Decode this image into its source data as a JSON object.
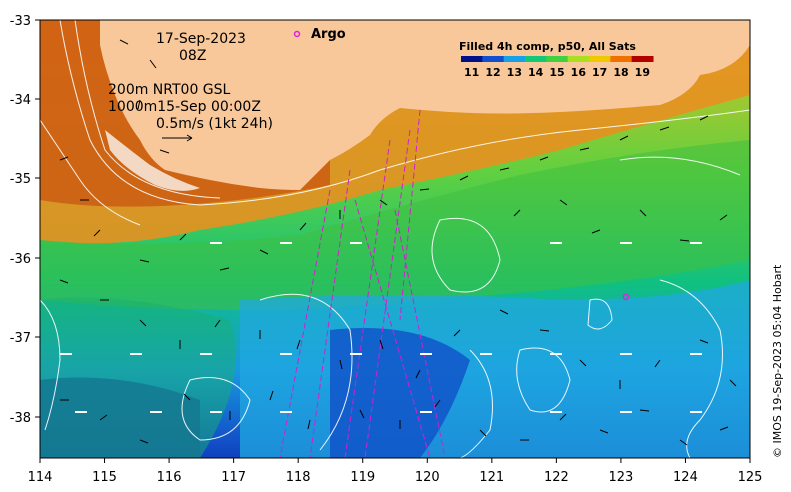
{
  "header": {
    "date": "17-Sep-2023",
    "time": "08Z",
    "depth_line1": "200m  NRT00 GSL",
    "depth_line2": "1000m15-Sep 00:00Z",
    "scale_label": "0.5m/s (1kt 24h)"
  },
  "argo": {
    "label": "Argo",
    "marker_color": "#e020e0"
  },
  "legend": {
    "title": "Filled 4h comp, p50, All Sats",
    "ticks": [
      "11",
      "12",
      "13",
      "14",
      "15",
      "16",
      "17",
      "18",
      "19"
    ],
    "colors": [
      "#00108a",
      "#1050d0",
      "#18a0e8",
      "#10c878",
      "#40d040",
      "#a8e020",
      "#f0c800",
      "#f07000",
      "#b00000"
    ]
  },
  "axes": {
    "x_ticks": [
      "114",
      "115",
      "116",
      "117",
      "118",
      "119",
      "120",
      "121",
      "122",
      "123",
      "124",
      "125"
    ],
    "y_ticks": [
      "-33",
      "-34",
      "-35",
      "-36",
      "-37",
      "-38"
    ]
  },
  "credit": "© IMOS 19-Sep-2023 05:04 Hobart",
  "colors": {
    "land": "#f9c89a",
    "grid_white": "#ffffff",
    "track": "#d020d0"
  }
}
